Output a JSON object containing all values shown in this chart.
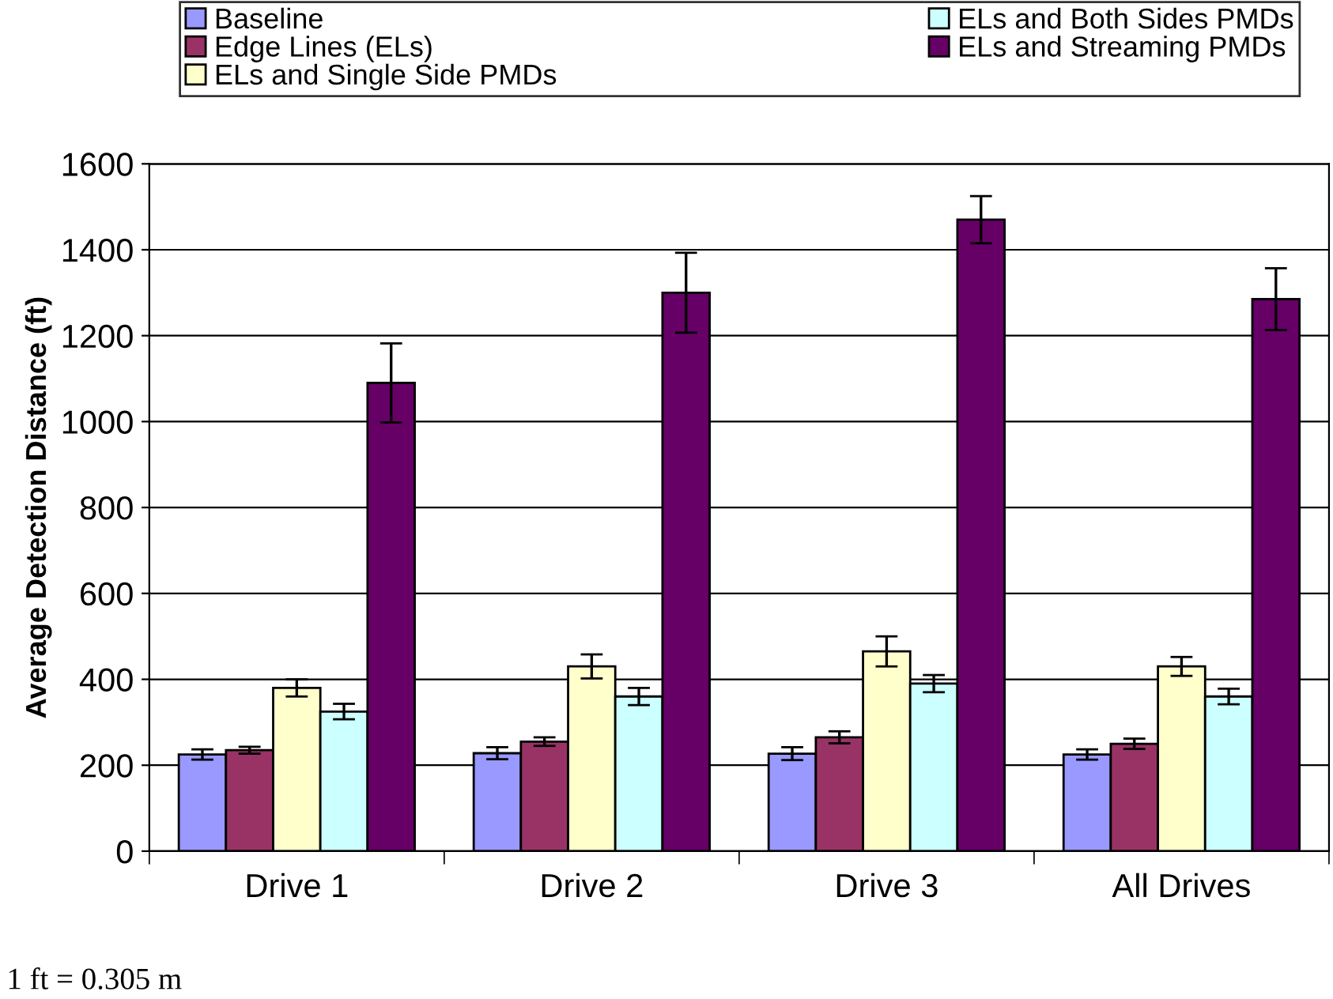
{
  "chart_data": {
    "type": "bar",
    "ylabel": "Average Detection Distance (ft)",
    "categories": [
      "Drive 1",
      "Drive 2",
      "Drive 3",
      "All Drives"
    ],
    "series": [
      {
        "name": "Baseline",
        "color": "#9999ff",
        "values": [
          225,
          228,
          227,
          225
        ],
        "errors": [
          12,
          14,
          15,
          12
        ]
      },
      {
        "name": "Edge Lines (ELs)",
        "color": "#993366",
        "values": [
          235,
          255,
          265,
          250
        ],
        "errors": [
          8,
          10,
          14,
          12
        ]
      },
      {
        "name": "ELs and Single Side PMDs",
        "color": "#ffffcc",
        "values": [
          380,
          430,
          465,
          430
        ],
        "errors": [
          20,
          28,
          35,
          22
        ]
      },
      {
        "name": "ELs and Both Sides PMDs",
        "color": "#ccffff",
        "values": [
          325,
          360,
          390,
          360
        ],
        "errors": [
          18,
          20,
          20,
          18
        ]
      },
      {
        "name": "ELs and Streaming PMDs",
        "color": "#660066",
        "values": [
          1090,
          1300,
          1470,
          1285
        ],
        "errors": [
          92,
          93,
          55,
          72
        ]
      }
    ],
    "ylim": [
      0,
      1600
    ],
    "yticks": [
      0,
      200,
      400,
      600,
      800,
      1000,
      1200,
      1400,
      1600
    ],
    "grid": "y",
    "legend": "top",
    "annotations": [
      "1 ft = 0.305 m"
    ]
  }
}
